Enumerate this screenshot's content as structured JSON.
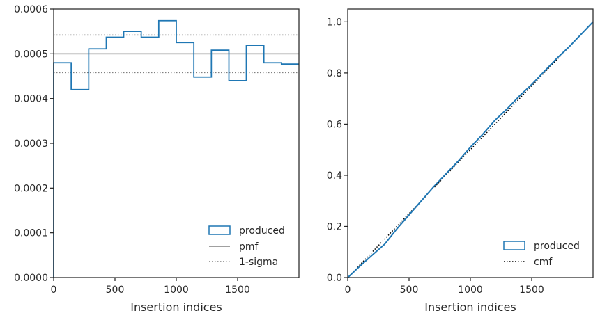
{
  "chart_data": [
    {
      "type": "line",
      "xlabel": "Insertion indices",
      "ylabel": "",
      "xlim": [
        0,
        2000
      ],
      "ylim": [
        0,
        0.0006
      ],
      "xticks": [
        0,
        500,
        1000,
        1500
      ],
      "yticks": [
        0.0,
        0.0001,
        0.0002,
        0.0003,
        0.0004,
        0.0005,
        0.0006
      ],
      "ytick_labels": [
        "0.0000",
        "0.0001",
        "0.0002",
        "0.0003",
        "0.0004",
        "0.0005",
        "0.0006"
      ],
      "xtick_labels": [
        "0",
        "500",
        "1000",
        "1500"
      ],
      "histogram": {
        "name": "produced",
        "bin_edges": [
          0,
          143,
          286,
          429,
          571,
          714,
          857,
          1000,
          1143,
          1286,
          1429,
          1571,
          1714,
          1857,
          2000
        ],
        "values": [
          0.00048,
          0.00042,
          0.000511,
          0.000537,
          0.00055,
          0.000537,
          0.000574,
          0.000525,
          0.000448,
          0.000508,
          0.00044,
          0.000519,
          0.00048,
          0.000477
        ],
        "color": "#1f77b4"
      },
      "pmf": {
        "name": "pmf",
        "value": 0.0005,
        "color": "#808080"
      },
      "sigma": {
        "name": "1-sigma",
        "values": [
          0.000458,
          0.000542
        ],
        "color": "#808080"
      },
      "legend": {
        "placement": "lower-right",
        "entries": [
          "produced",
          "pmf",
          "1-sigma"
        ]
      },
      "grid": false
    },
    {
      "type": "line",
      "xlabel": "Insertion indices",
      "ylabel": "",
      "xlim": [
        0,
        2000
      ],
      "ylim": [
        0,
        1.05
      ],
      "xticks": [
        0,
        500,
        1000,
        1500
      ],
      "xtick_labels": [
        "0",
        "500",
        "1000",
        "1500"
      ],
      "yticks": [
        0.0,
        0.2,
        0.4,
        0.6,
        0.8,
        1.0
      ],
      "ytick_labels": [
        "0.0",
        "0.2",
        "0.4",
        "0.6",
        "0.8",
        "1.0"
      ],
      "series": [
        {
          "name": "produced",
          "color": "#1f77b4",
          "x": [
            0,
            100,
            200,
            300,
            400,
            500,
            600,
            700,
            800,
            900,
            1000,
            1100,
            1200,
            1300,
            1400,
            1500,
            1600,
            1700,
            1800,
            1900,
            2000
          ],
          "y": [
            0.0,
            0.045,
            0.088,
            0.13,
            0.19,
            0.245,
            0.3,
            0.355,
            0.405,
            0.455,
            0.51,
            0.56,
            0.615,
            0.66,
            0.71,
            0.755,
            0.805,
            0.855,
            0.9,
            0.95,
            1.0
          ]
        },
        {
          "name": "cmf",
          "color": "#000000",
          "x": [
            0,
            2000
          ],
          "y": [
            0.0,
            1.0
          ]
        }
      ],
      "legend": {
        "placement": "lower-right",
        "entries": [
          "produced",
          "cmf"
        ]
      },
      "grid": false
    }
  ]
}
